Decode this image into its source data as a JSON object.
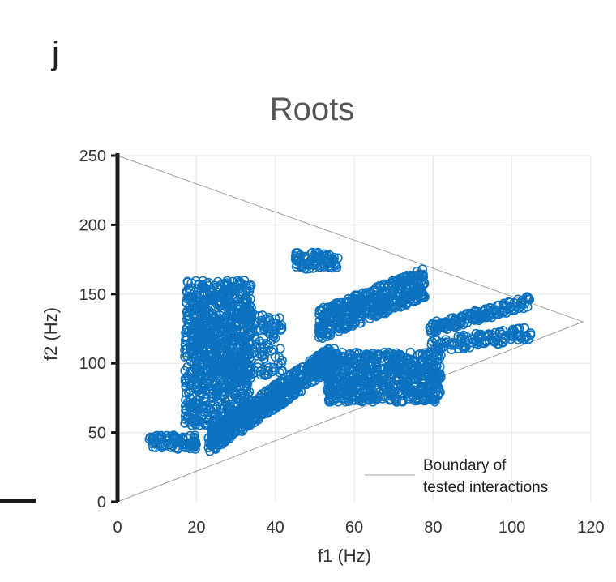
{
  "panel_label": "j",
  "chart_data": {
    "type": "scatter",
    "title": "Roots",
    "xlabel": "f1 (Hz)",
    "ylabel": "f2 (Hz)",
    "xlim": [
      0,
      120
    ],
    "ylim": [
      0,
      250
    ],
    "xticks": [
      0,
      20,
      40,
      60,
      80,
      100,
      120
    ],
    "yticks": [
      0,
      50,
      100,
      150,
      200,
      250
    ],
    "grid": true,
    "legend": {
      "placement": "bottom-right",
      "entries": [
        "Boundary of",
        "tested interactions"
      ]
    },
    "colors": {
      "points": "#0c72c0",
      "boundary": "#a0a0a0",
      "grid": "#e6e6e6",
      "axis": "#1a1a1a"
    },
    "boundary": {
      "x": [
        0,
        118,
        0
      ],
      "y": [
        250,
        130,
        0
      ]
    },
    "series": [
      {
        "marker": "open-circle",
        "clusters": [
          {
            "note": "upper-left",
            "x": [
              17,
              34
            ],
            "y": [
              55,
              160
            ],
            "n": 900
          },
          {
            "note": "left-mid",
            "x": [
              20,
              42
            ],
            "y": [
              90,
              135
            ],
            "n": 250
          },
          {
            "note": "bottom-left",
            "x": [
              8,
              20
            ],
            "y": [
              38,
              48
            ],
            "n": 90
          },
          {
            "note": "diagonal-band",
            "x": [
              23,
              55
            ],
            "y": [
              38,
              100
            ],
            "n": 600
          },
          {
            "note": "lower-middle",
            "x": [
              53,
              82
            ],
            "y": [
              72,
              108
            ],
            "n": 650
          },
          {
            "note": "top-cluster",
            "x": [
              45,
              56
            ],
            "y": [
              168,
              180
            ],
            "n": 80
          },
          {
            "note": "upper-right",
            "x": [
              51,
              78
            ],
            "y": [
              125,
              178
            ],
            "n": 450
          },
          {
            "note": "right-band",
            "x": [
              79,
              105
            ],
            "y": [
              112,
              145
            ],
            "n": 280
          }
        ]
      }
    ]
  }
}
